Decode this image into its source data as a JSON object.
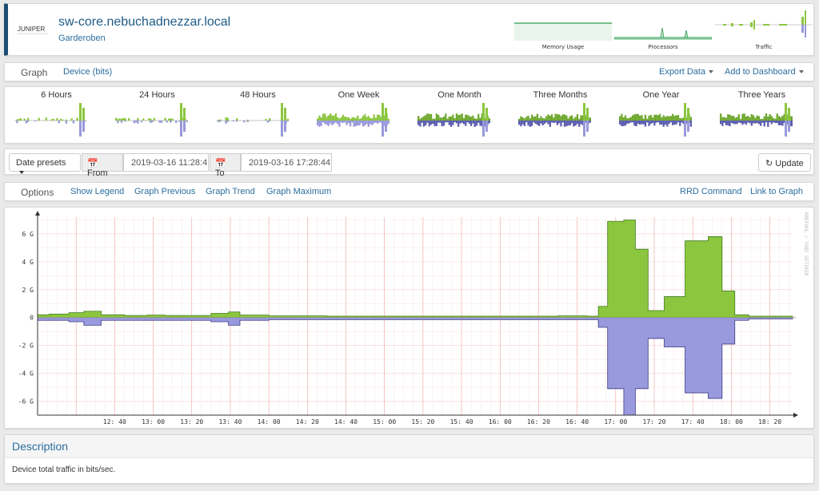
{
  "header": {
    "logo_text": "JUNIPER",
    "hostname": "sw-core.nebuchadnezzar.local",
    "location": "Garderoben",
    "mini_graphs": [
      {
        "label": "Memory Usage"
      },
      {
        "label": "Processors"
      },
      {
        "label": "Traffic"
      }
    ]
  },
  "graph_bar": {
    "title": "Graph",
    "type": "Device (bits)",
    "export": "Export Data",
    "add_dashboard": "Add to Dashboard"
  },
  "thumbnails": [
    {
      "label": "6 Hours"
    },
    {
      "label": "24 Hours"
    },
    {
      "label": "48 Hours"
    },
    {
      "label": "One Week"
    },
    {
      "label": "One Month"
    },
    {
      "label": "Three Months"
    },
    {
      "label": "One Year"
    },
    {
      "label": "Three Years"
    }
  ],
  "date_row": {
    "presets": "Date presets",
    "from_label": "From",
    "from_value": "2019-03-16 11:28:4",
    "to_label": "To",
    "to_value": "2019-03-16 17:28:44",
    "update": "Update"
  },
  "options": {
    "label": "Options",
    "show_legend": "Show Legend",
    "graph_previous": "Graph Previous",
    "graph_trend": "Graph Trend",
    "graph_maximum": "Graph Maximum",
    "rrd_command": "RRD Command",
    "link_to_graph": "Link to Graph"
  },
  "chart_data": {
    "type": "area",
    "watermark": "RRDTOOL / TOBI OETIKER",
    "y_ticks": [
      "6 G",
      "4 G",
      "2 G",
      "0",
      "-2 G",
      "-4 G",
      "-6 G"
    ],
    "y_tick_values": [
      6,
      4,
      2,
      0,
      -2,
      -4,
      -6
    ],
    "ylim": [
      -7,
      7.2
    ],
    "x_ticks": [
      "12:40",
      "13:00",
      "13:20",
      "13:40",
      "14:00",
      "14:20",
      "14:40",
      "15:00",
      "15:20",
      "15:40",
      "16:00",
      "16:20",
      "16:40",
      "17:00",
      "17:20",
      "17:40",
      "18:00",
      "18:20"
    ],
    "x_range_minutes": [
      12.0,
      18.53
    ],
    "colors": {
      "in": "#8cc63f",
      "in_edge": "#3d7a1a",
      "out": "#9999dd",
      "out_edge": "#3c3c8a"
    },
    "series_in": [
      [
        12.0,
        0.2
      ],
      [
        12.1,
        0.25
      ],
      [
        12.27,
        0.35
      ],
      [
        12.4,
        0.45
      ],
      [
        12.55,
        0.2
      ],
      [
        12.75,
        0.15
      ],
      [
        12.95,
        0.18
      ],
      [
        13.1,
        0.15
      ],
      [
        13.3,
        0.15
      ],
      [
        13.5,
        0.3
      ],
      [
        13.65,
        0.4
      ],
      [
        13.75,
        0.18
      ],
      [
        14.0,
        0.12
      ],
      [
        14.5,
        0.1
      ],
      [
        15.0,
        0.1
      ],
      [
        15.5,
        0.1
      ],
      [
        16.0,
        0.1
      ],
      [
        16.5,
        0.12
      ],
      [
        16.75,
        0.1
      ],
      [
        16.85,
        0.8
      ],
      [
        16.93,
        6.9
      ],
      [
        17.07,
        7.0
      ],
      [
        17.17,
        4.9
      ],
      [
        17.28,
        0.5
      ],
      [
        17.42,
        1.5
      ],
      [
        17.6,
        5.5
      ],
      [
        17.8,
        5.8
      ],
      [
        17.92,
        1.9
      ],
      [
        18.03,
        0.2
      ],
      [
        18.15,
        0.1
      ],
      [
        18.53,
        0.05
      ]
    ],
    "series_out": [
      [
        12.0,
        -0.2
      ],
      [
        12.27,
        -0.3
      ],
      [
        12.4,
        -0.55
      ],
      [
        12.55,
        -0.2
      ],
      [
        12.95,
        -0.2
      ],
      [
        13.1,
        -0.2
      ],
      [
        13.5,
        -0.3
      ],
      [
        13.65,
        -0.55
      ],
      [
        13.75,
        -0.2
      ],
      [
        14.0,
        -0.15
      ],
      [
        14.5,
        -0.15
      ],
      [
        15.0,
        -0.15
      ],
      [
        15.5,
        -0.15
      ],
      [
        16.0,
        -0.15
      ],
      [
        16.5,
        -0.15
      ],
      [
        16.75,
        -0.15
      ],
      [
        16.85,
        -0.7
      ],
      [
        16.93,
        -5.1
      ],
      [
        17.07,
        -7.0
      ],
      [
        17.17,
        -5.1
      ],
      [
        17.28,
        -1.5
      ],
      [
        17.42,
        -2.1
      ],
      [
        17.6,
        -5.4
      ],
      [
        17.8,
        -5.8
      ],
      [
        17.92,
        -1.9
      ],
      [
        18.03,
        -0.2
      ],
      [
        18.15,
        -0.1
      ],
      [
        18.53,
        -0.05
      ]
    ]
  },
  "description": {
    "title": "Description",
    "text": "Device total traffic in bits/sec."
  }
}
